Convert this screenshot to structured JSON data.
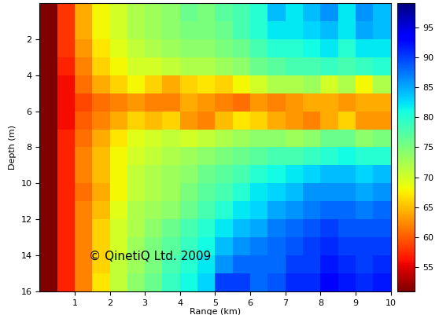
{
  "chart_data": {
    "type": "heatmap",
    "xlabel": "Range (km)",
    "ylabel": "Depth (m)",
    "annotation": "© QinetiQ Ltd. 2009",
    "x_edges": [
      0,
      0.5,
      1,
      1.5,
      2,
      2.5,
      3,
      3.5,
      4,
      4.5,
      5,
      5.5,
      6,
      6.5,
      7,
      7.5,
      8,
      8.5,
      9,
      9.5,
      10
    ],
    "y_edges": [
      0,
      1,
      2,
      3,
      4,
      5,
      6,
      7,
      8,
      9,
      10,
      11,
      12,
      13,
      14,
      15,
      16
    ],
    "cells": [
      [
        51,
        58,
        64,
        68,
        70,
        72,
        73,
        74,
        76,
        75,
        77,
        78,
        80,
        84,
        82,
        84,
        86,
        82,
        86,
        84
      ],
      [
        51,
        58,
        64,
        68,
        70,
        72,
        73,
        74,
        75,
        75,
        76,
        78,
        80,
        82,
        82,
        83,
        84,
        82,
        85,
        84
      ],
      [
        51,
        58,
        63,
        67,
        69,
        71,
        72,
        73,
        74,
        74,
        75,
        76,
        78,
        80,
        80,
        81,
        82,
        80,
        82,
        82
      ],
      [
        51,
        57,
        62,
        66,
        68,
        70,
        70,
        71,
        72,
        72,
        73,
        74,
        76,
        77,
        78,
        78,
        79,
        78,
        79,
        80
      ],
      [
        51,
        56,
        61,
        64,
        66,
        68,
        66,
        64,
        66,
        67,
        66,
        68,
        70,
        72,
        72,
        73,
        70,
        72,
        68,
        72
      ],
      [
        51,
        56,
        59,
        61,
        62,
        63,
        62,
        62,
        64,
        63,
        62,
        61,
        63,
        62,
        63,
        64,
        64,
        63,
        64,
        64
      ],
      [
        51,
        56,
        60,
        62,
        64,
        66,
        65,
        66,
        63,
        62,
        65,
        67,
        66,
        64,
        63,
        62,
        64,
        66,
        63,
        63
      ],
      [
        51,
        57,
        61,
        64,
        67,
        69,
        70,
        71,
        70,
        71,
        72,
        73,
        74,
        74,
        73,
        74,
        76,
        76,
        74,
        75
      ],
      [
        51,
        57,
        62,
        65,
        68,
        70,
        71,
        72,
        73,
        74,
        75,
        76,
        77,
        78,
        78,
        79,
        80,
        81,
        80,
        80
      ],
      [
        51,
        57,
        62,
        65,
        68,
        71,
        72,
        73,
        74,
        76,
        77,
        78,
        80,
        81,
        82,
        83,
        84,
        84,
        83,
        84
      ],
      [
        51,
        57,
        61,
        64,
        68,
        71,
        72,
        73,
        75,
        77,
        78,
        80,
        82,
        83,
        84,
        86,
        86,
        86,
        85,
        86
      ],
      [
        51,
        57,
        62,
        65,
        69,
        72,
        73,
        74,
        76,
        78,
        80,
        82,
        83,
        85,
        86,
        87,
        88,
        88,
        87,
        88
      ],
      [
        51,
        57,
        62,
        66,
        70,
        72,
        74,
        76,
        78,
        80,
        82,
        84,
        85,
        87,
        88,
        89,
        90,
        89,
        89,
        89
      ],
      [
        51,
        57,
        62,
        66,
        70,
        73,
        75,
        77,
        79,
        81,
        84,
        86,
        87,
        88,
        89,
        90,
        91,
        90,
        90,
        90
      ],
      [
        51,
        57,
        62,
        66,
        71,
        73,
        75,
        78,
        80,
        82,
        86,
        88,
        88,
        88,
        90,
        90,
        92,
        91,
        90,
        91
      ],
      [
        51,
        57,
        62,
        67,
        71,
        74,
        76,
        79,
        81,
        83,
        90,
        90,
        88,
        89,
        91,
        91,
        93,
        92,
        91,
        92
      ]
    ],
    "xlim": [
      0,
      10
    ],
    "xticks": [
      1,
      2,
      3,
      4,
      5,
      6,
      7,
      8,
      9,
      10
    ],
    "ylim": [
      16,
      0
    ],
    "yticks": [
      2,
      4,
      6,
      8,
      10,
      12,
      14,
      16
    ],
    "colorbar_range": [
      51,
      99
    ],
    "colorbar_ticks": [
      55,
      60,
      65,
      70,
      75,
      80,
      85,
      90,
      95
    ]
  }
}
